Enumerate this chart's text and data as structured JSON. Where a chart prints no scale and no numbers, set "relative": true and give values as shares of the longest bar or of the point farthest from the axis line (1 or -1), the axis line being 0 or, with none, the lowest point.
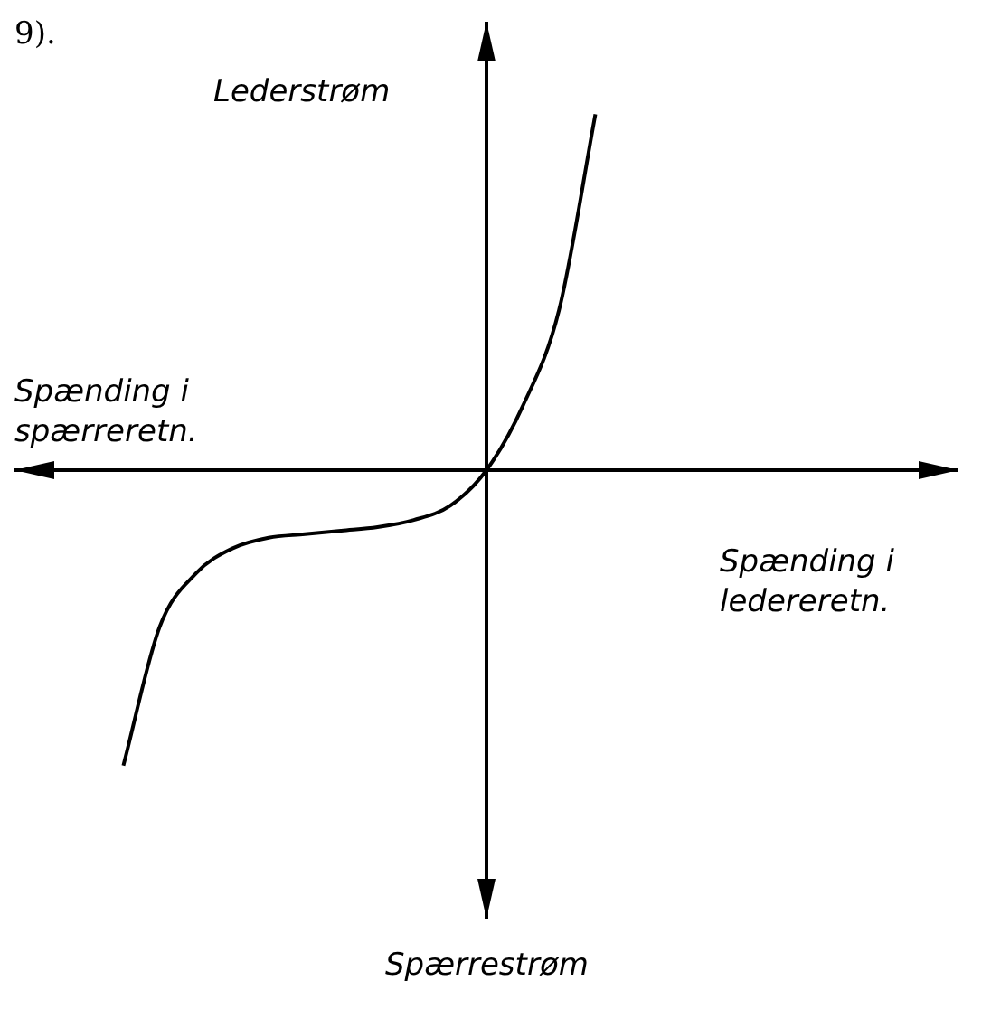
{
  "chart_data": {
    "type": "line",
    "relative": true,
    "ylabel": "Lederstrøm",
    "xlabel": "Spænding i ledereretn.",
    "annotations": [
      "9).",
      "Spænding i spærreretn.",
      "Spærrestrøm"
    ],
    "categories": [
      null,
      null,
      null,
      null,
      null,
      null,
      null,
      null,
      null,
      null,
      null,
      null,
      null,
      null,
      null,
      null,
      null,
      null,
      null,
      null,
      null,
      null,
      null,
      null,
      null,
      null,
      null
    ],
    "series": [
      {
        "color": "#000000",
        "values": [
          null,
          null,
          null,
          -0.83,
          -0.44,
          -0.29,
          -0.22,
          -0.19,
          -0.18,
          -0.17,
          -0.16,
          -0.14,
          -0.1,
          0,
          0.18,
          0.45,
          1,
          null,
          null,
          null,
          null,
          null,
          null,
          null,
          null,
          null,
          null
        ]
      }
    ],
    "marker": "none",
    "grid": false,
    "legend": false
  }
}
